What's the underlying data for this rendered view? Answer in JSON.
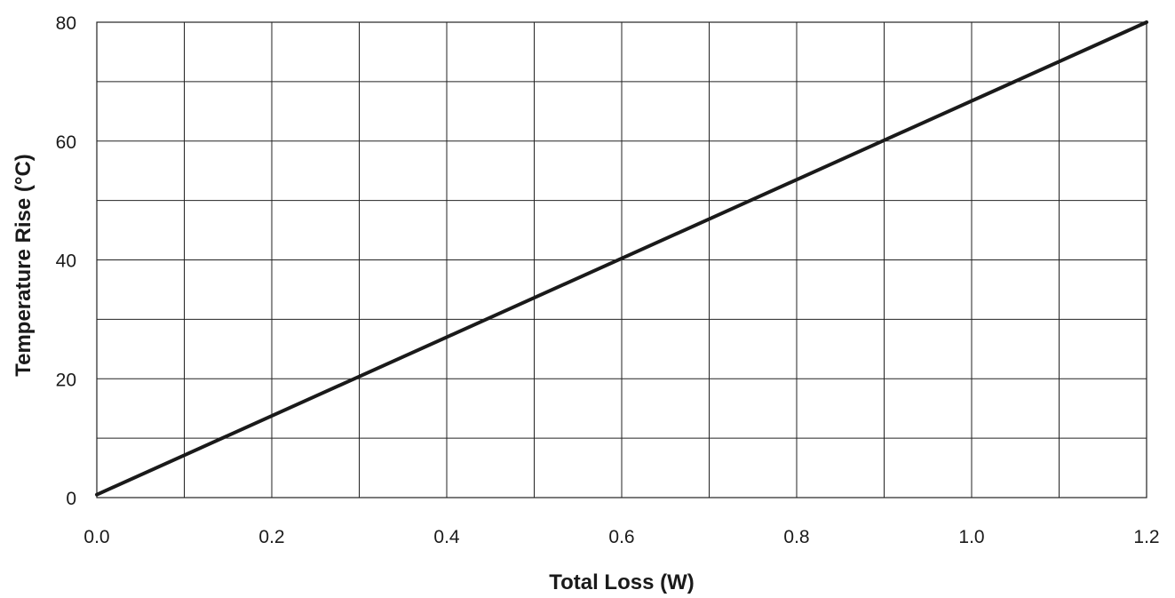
{
  "chart_data": {
    "type": "line",
    "title": "",
    "xlabel": "Total Loss (W)",
    "ylabel": "Temperature Rise (°C)",
    "xlim": [
      0.0,
      1.2
    ],
    "ylim": [
      0,
      80
    ],
    "x_ticks": [
      "0.0",
      "0.2",
      "0.4",
      "0.6",
      "0.8",
      "1.0",
      "1.2"
    ],
    "y_ticks": [
      "0",
      "20",
      "40",
      "60",
      "80"
    ],
    "x_grid_step": 0.1,
    "y_grid_step": 10,
    "grid": true,
    "legend": "none",
    "series": [
      {
        "x": [
          0.0,
          1.2
        ],
        "y": [
          0.5,
          80
        ]
      }
    ]
  }
}
